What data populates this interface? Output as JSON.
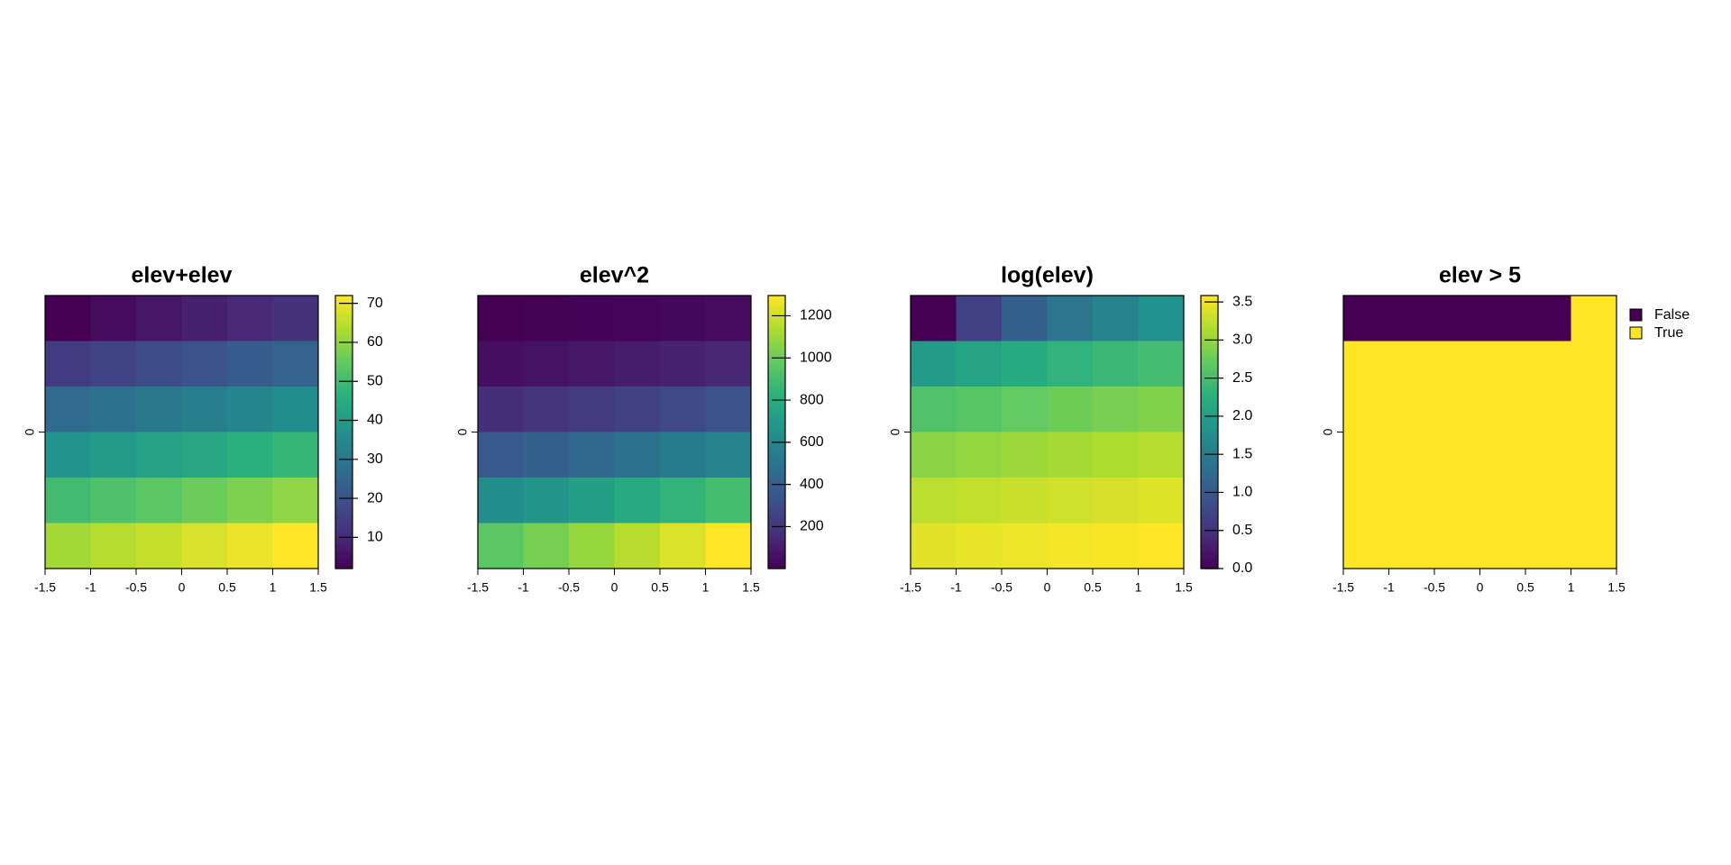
{
  "chart_data": [
    {
      "type": "heatmap",
      "title": "elev+elev",
      "colormap": "viridis",
      "xlim": [
        -1.5,
        1.5
      ],
      "ylim": [
        -1.5,
        1.5
      ],
      "xticks": [
        -1.5,
        -1,
        -0.5,
        0,
        0.5,
        1,
        1.5
      ],
      "yticks": [
        0
      ],
      "z": [
        [
          2,
          4,
          6,
          8,
          10,
          12
        ],
        [
          14,
          16,
          18,
          20,
          22,
          24
        ],
        [
          26,
          28,
          30,
          32,
          34,
          36
        ],
        [
          38,
          40,
          42,
          44,
          46,
          48
        ],
        [
          50,
          52,
          54,
          56,
          58,
          60
        ],
        [
          62,
          64,
          66,
          68,
          70,
          72
        ]
      ],
      "colorbar": {
        "lim": [
          2,
          72
        ],
        "ticks": [
          10,
          20,
          30,
          40,
          50,
          60,
          70
        ]
      }
    },
    {
      "type": "heatmap",
      "title": "elev^2",
      "colormap": "viridis",
      "xlim": [
        -1.5,
        1.5
      ],
      "ylim": [
        -1.5,
        1.5
      ],
      "xticks": [
        -1.5,
        -1,
        -0.5,
        0,
        0.5,
        1,
        1.5
      ],
      "yticks": [
        0
      ],
      "z": [
        [
          1,
          4,
          9,
          16,
          25,
          36
        ],
        [
          49,
          64,
          81,
          100,
          121,
          144
        ],
        [
          169,
          196,
          225,
          256,
          289,
          324
        ],
        [
          361,
          400,
          441,
          484,
          529,
          576
        ],
        [
          625,
          676,
          729,
          784,
          841,
          900
        ],
        [
          961,
          1024,
          1089,
          1156,
          1225,
          1296
        ]
      ],
      "colorbar": {
        "lim": [
          1,
          1296
        ],
        "ticks": [
          200,
          400,
          600,
          800,
          1000,
          1200
        ]
      }
    },
    {
      "type": "heatmap",
      "title": "log(elev)",
      "colormap": "viridis",
      "xlim": [
        -1.5,
        1.5
      ],
      "ylim": [
        -1.5,
        1.5
      ],
      "xticks": [
        -1.5,
        -1,
        -0.5,
        0,
        0.5,
        1,
        1.5
      ],
      "yticks": [
        0
      ],
      "z": [
        [
          0,
          0.693,
          1.099,
          1.386,
          1.609,
          1.792
        ],
        [
          1.946,
          2.079,
          2.197,
          2.303,
          2.398,
          2.485
        ],
        [
          2.565,
          2.639,
          2.708,
          2.773,
          2.833,
          2.89
        ],
        [
          2.944,
          2.996,
          3.045,
          3.091,
          3.135,
          3.178
        ],
        [
          3.219,
          3.258,
          3.296,
          3.332,
          3.367,
          3.401
        ],
        [
          3.434,
          3.466,
          3.497,
          3.526,
          3.555,
          3.584
        ]
      ],
      "colorbar": {
        "lim": [
          0,
          3.584
        ],
        "ticks": [
          {
            "value": 0,
            "label": "0.0"
          },
          0.5,
          {
            "value": 1,
            "label": "1.0"
          },
          1.5,
          {
            "value": 2,
            "label": "2.0"
          },
          2.5,
          {
            "value": 3,
            "label": "3.0"
          },
          3.5
        ]
      }
    },
    {
      "type": "heatmap",
      "title": "elev > 5",
      "xlim": [
        -1.5,
        1.5
      ],
      "ylim": [
        -1.5,
        1.5
      ],
      "xticks": [
        -1.5,
        -1,
        -0.5,
        0,
        0.5,
        1,
        1.5
      ],
      "yticks": [
        0
      ],
      "z": [
        [
          0,
          0,
          0,
          0,
          0,
          1
        ],
        [
          1,
          1,
          1,
          1,
          1,
          1
        ],
        [
          1,
          1,
          1,
          1,
          1,
          1
        ],
        [
          1,
          1,
          1,
          1,
          1,
          1
        ],
        [
          1,
          1,
          1,
          1,
          1,
          1
        ],
        [
          1,
          1,
          1,
          1,
          1,
          1
        ]
      ],
      "legend": {
        "labels": [
          "False",
          "True"
        ],
        "colors": [
          "#440154",
          "#fde725"
        ]
      }
    }
  ]
}
